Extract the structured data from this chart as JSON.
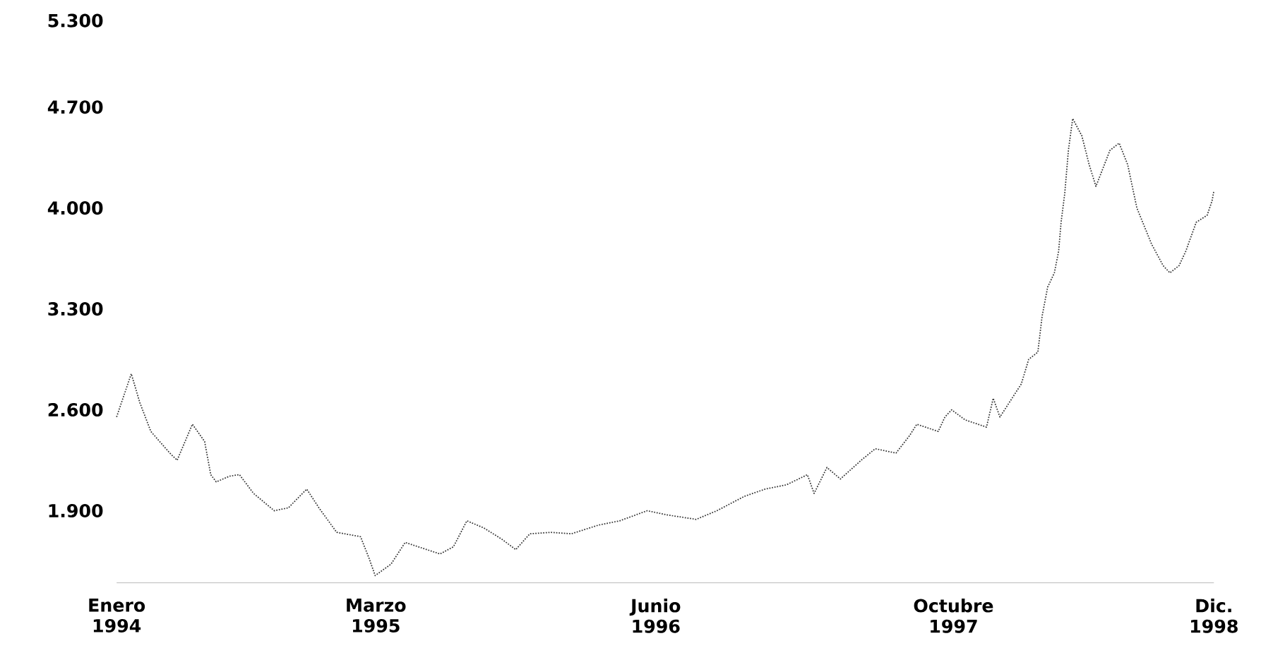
{
  "chart_data": {
    "type": "line",
    "x": [
      "1994-01-01",
      "1994-01-25",
      "1994-02-08",
      "1994-02-26",
      "1994-03-29",
      "1994-04-10",
      "1994-05-05",
      "1994-05-25",
      "1994-06-04",
      "1994-06-13",
      "1994-07-05",
      "1994-07-21",
      "1994-08-13",
      "1994-09-16",
      "1994-10-09",
      "1994-11-08",
      "1994-11-28",
      "1994-12-27",
      "1995-02-04",
      "1995-02-18",
      "1995-02-28",
      "1995-03-26",
      "1995-04-18",
      "1995-06-14",
      "1995-07-06",
      "1995-07-28",
      "1995-08-25",
      "1995-09-24",
      "1995-10-16",
      "1995-11-08",
      "1995-12-12",
      "1996-01-15",
      "1996-02-28",
      "1996-04-03",
      "1996-05-18",
      "1996-06-21",
      "1996-08-06",
      "1996-09-09",
      "1996-10-24",
      "1996-11-27",
      "1997-01-01",
      "1997-02-04",
      "1997-02-15",
      "1997-03-08",
      "1997-03-30",
      "1997-05-03",
      "1997-05-26",
      "1997-06-29",
      "1997-07-21",
      "1997-08-02",
      "1997-09-06",
      "1997-09-17",
      "1997-09-28",
      "1997-10-20",
      "1997-11-24",
      "1997-12-05",
      "1997-12-16",
      "1998-01-20",
      "1998-02-01",
      "1998-02-16",
      "1998-02-23",
      "1998-03-04",
      "1998-03-15",
      "1998-03-22",
      "1998-03-26",
      "1998-04-01",
      "1998-04-07",
      "1998-04-14",
      "1998-04-29",
      "1998-05-11",
      "1998-05-22",
      "1998-06-14",
      "1998-06-29",
      "1998-07-13",
      "1998-07-28",
      "1998-08-21",
      "1998-09-09",
      "1998-09-20",
      "1998-10-05",
      "1998-10-16",
      "1998-11-02",
      "1998-11-20",
      "1998-11-28",
      "1998-12-01"
    ],
    "series": [
      {
        "color": "#333333",
        "values": [
          2550,
          2850,
          2650,
          2450,
          2300,
          2250,
          2500,
          2380,
          2150,
          2100,
          2140,
          2150,
          2020,
          1900,
          1920,
          2050,
          1920,
          1750,
          1720,
          1570,
          1450,
          1530,
          1680,
          1600,
          1650,
          1830,
          1780,
          1700,
          1630,
          1740,
          1750,
          1740,
          1800,
          1830,
          1900,
          1870,
          1840,
          1900,
          2000,
          2050,
          2080,
          2150,
          2020,
          2200,
          2120,
          2250,
          2330,
          2300,
          2420,
          2500,
          2450,
          2550,
          2600,
          2530,
          2480,
          2680,
          2550,
          2780,
          2950,
          3000,
          3250,
          3450,
          3550,
          3700,
          3900,
          4100,
          4400,
          4620,
          4500,
          4300,
          4150,
          4400,
          4450,
          4300,
          4000,
          3750,
          3600,
          3550,
          3600,
          3700,
          3900,
          3950,
          4050,
          4120
        ]
      }
    ],
    "line_style": "dotted",
    "xlim": [
      "1994-01-01",
      "1998-12-01"
    ],
    "ylim": [
      1400,
      5300
    ],
    "xticks": [
      {
        "value": "1994-01-01",
        "label": "Enero 1994"
      },
      {
        "value": "1995-03-01",
        "label": "Marzo 1995"
      },
      {
        "value": "1996-06-01",
        "label": "Junio 1996"
      },
      {
        "value": "1997-10-01",
        "label": "Octubre 1997"
      },
      {
        "value": "1998-12-01",
        "label": "Dic. 1998"
      }
    ],
    "yticks": [
      {
        "value": 1900,
        "label": "1.900"
      },
      {
        "value": 2600,
        "label": "2.600"
      },
      {
        "value": 3300,
        "label": "3.300"
      },
      {
        "value": 4000,
        "label": "4.000"
      },
      {
        "value": 4700,
        "label": "4.700"
      },
      {
        "value": 5300,
        "label": "5.300"
      }
    ]
  }
}
